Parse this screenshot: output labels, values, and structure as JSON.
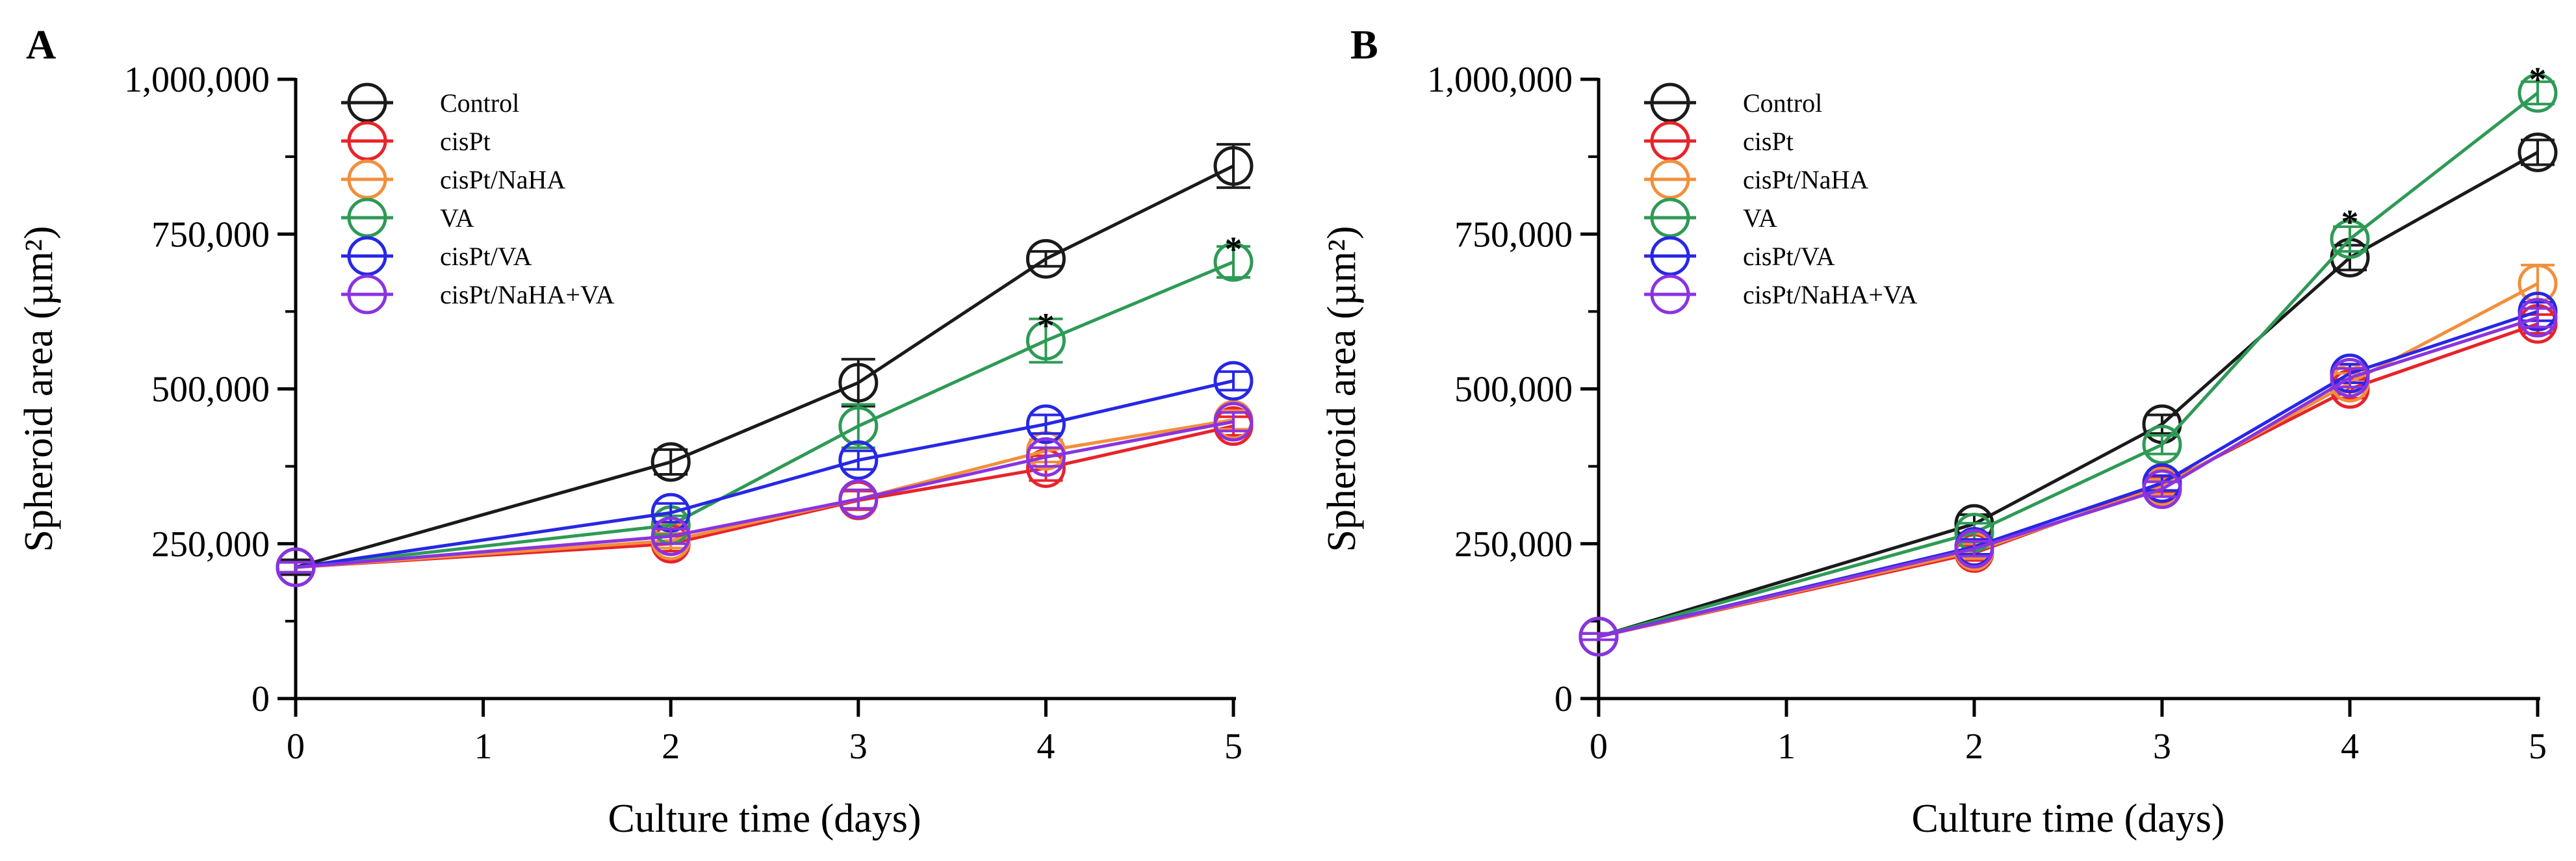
{
  "figure": {
    "panels": [
      "A",
      "B"
    ]
  },
  "chart_data": [
    {
      "panel": "A",
      "type": "line",
      "title": "",
      "xlabel": "Culture time (days)",
      "ylabel": "Spheroid area (µm²)",
      "xlim": [
        0,
        5
      ],
      "ylim": [
        0,
        1000000
      ],
      "x_ticks": [
        "0",
        "1",
        "2",
        "3",
        "4",
        "5"
      ],
      "y_ticks": [
        "0",
        "250,000",
        "500,000",
        "750,000",
        "1,000,000"
      ],
      "legend_position": "top-left",
      "x": [
        0,
        2,
        3,
        4,
        5
      ],
      "series": [
        {
          "name": "Control",
          "color": "#1a1a1a",
          "values": [
            212000,
            382000,
            510000,
            710000,
            860000
          ],
          "errors": [
            12000,
            20000,
            38000,
            12000,
            35000
          ]
        },
        {
          "name": "cisPt",
          "color": "#e8232a",
          "values": [
            212000,
            250000,
            320000,
            372000,
            440000
          ],
          "errors": [
            8000,
            12000,
            15000,
            20000,
            15000
          ]
        },
        {
          "name": "cisPt/NaHA",
          "color": "#f28f3b",
          "values": [
            212000,
            255000,
            322000,
            400000,
            450000
          ],
          "errors": [
            8000,
            12000,
            15000,
            18000,
            15000
          ]
        },
        {
          "name": "VA",
          "color": "#2e9a55",
          "values": [
            212000,
            280000,
            440000,
            578000,
            705000
          ],
          "errors": [
            8000,
            15000,
            35000,
            35000,
            25000
          ]
        },
        {
          "name": "cisPt/VA",
          "color": "#2727e6",
          "values": [
            212000,
            300000,
            385000,
            443000,
            513000
          ],
          "errors": [
            8000,
            15000,
            15000,
            15000,
            15000
          ]
        },
        {
          "name": "cisPt/NaHA+VA",
          "color": "#8a33e0",
          "values": [
            212000,
            262000,
            322000,
            390000,
            447000
          ],
          "errors": [
            8000,
            12000,
            15000,
            15000,
            15000
          ]
        }
      ],
      "annotations": [
        {
          "text": "*",
          "x": 4,
          "y": 615000
        },
        {
          "text": "*",
          "x": 5,
          "y": 738000
        }
      ]
    },
    {
      "panel": "B",
      "type": "line",
      "title": "",
      "xlabel": "Culture time (days)",
      "ylabel": "Spheroid area (µm²)",
      "xlim": [
        0,
        5
      ],
      "ylim": [
        0,
        1000000
      ],
      "x_ticks": [
        "0",
        "1",
        "2",
        "3",
        "4",
        "5"
      ],
      "y_ticks": [
        "0",
        "250,000",
        "500,000",
        "750,000",
        "1,000,000"
      ],
      "legend_position": "top-left",
      "x": [
        0,
        2,
        3,
        4,
        5
      ],
      "series": [
        {
          "name": "Control",
          "color": "#1a1a1a",
          "values": [
            100000,
            282000,
            443000,
            712000,
            882000
          ],
          "errors": [
            5000,
            15000,
            15000,
            20000,
            20000
          ]
        },
        {
          "name": "cisPt",
          "color": "#e8232a",
          "values": [
            100000,
            235000,
            345000,
            500000,
            605000
          ],
          "errors": [
            5000,
            12000,
            12000,
            15000,
            15000
          ]
        },
        {
          "name": "cisPt/NaHA",
          "color": "#f28f3b",
          "values": [
            100000,
            238000,
            342000,
            510000,
            670000
          ],
          "errors": [
            5000,
            12000,
            12000,
            15000,
            30000
          ]
        },
        {
          "name": "VA",
          "color": "#2e9a55",
          "values": [
            100000,
            268000,
            410000,
            742000,
            978000
          ],
          "errors": [
            5000,
            15000,
            15000,
            20000,
            18000
          ]
        },
        {
          "name": "cisPt/VA",
          "color": "#2727e6",
          "values": [
            100000,
            245000,
            348000,
            525000,
            625000
          ],
          "errors": [
            5000,
            12000,
            12000,
            15000,
            15000
          ]
        },
        {
          "name": "cisPt/NaHA+VA",
          "color": "#8a33e0",
          "values": [
            100000,
            242000,
            338000,
            518000,
            615000
          ],
          "errors": [
            5000,
            12000,
            12000,
            15000,
            15000
          ]
        }
      ],
      "annotations": [
        {
          "text": "*",
          "x": 4,
          "y": 782000
        },
        {
          "text": "*",
          "x": 5,
          "y": 1012000
        }
      ]
    }
  ]
}
